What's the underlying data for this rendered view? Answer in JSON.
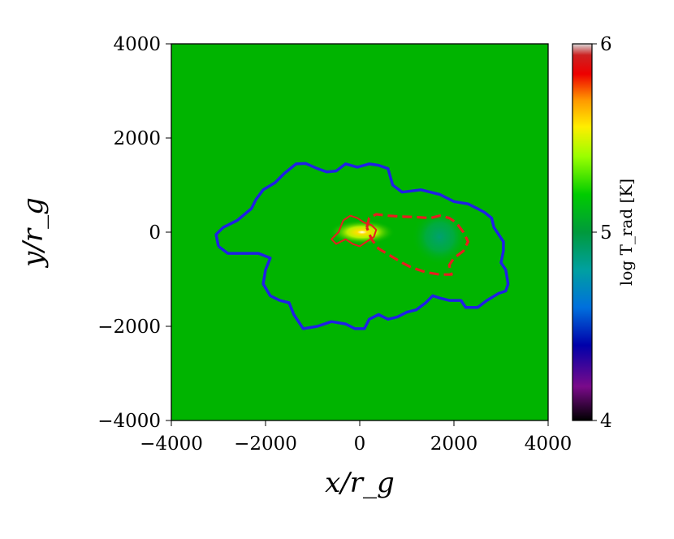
{
  "chart_data": {
    "type": "heatmap",
    "title": "",
    "xlabel": "x/r_g",
    "ylabel": "y/r_g",
    "xlim": [
      -4000,
      4000
    ],
    "ylim": [
      -4000,
      4000
    ],
    "x_ticks": [
      "−4000",
      "−2000",
      "0",
      "2000",
      "4000"
    ],
    "y_ticks": [
      "4000",
      "2000",
      "0",
      "−2000",
      "−4000"
    ],
    "colorbar": {
      "label": "log T_rad [K]",
      "range": [
        4,
        6
      ],
      "ticks": [
        "6",
        "5",
        "4"
      ],
      "colormap": "nipy_spectral"
    },
    "background_value": 5.3,
    "features": [
      {
        "name": "hot-core",
        "x": 50,
        "y": 0,
        "value": 5.7
      },
      {
        "name": "warm-blob",
        "x": 1700,
        "y": -100,
        "value": 4.95
      }
    ],
    "contours": [
      {
        "name": "blue-contour",
        "color": "#1f1fe6",
        "style": "solid",
        "points": [
          [
            -3000,
            -300
          ],
          [
            -3050,
            -50
          ],
          [
            -2900,
            100
          ],
          [
            -2600,
            250
          ],
          [
            -2300,
            500
          ],
          [
            -2200,
            700
          ],
          [
            -2050,
            900
          ],
          [
            -1800,
            1050
          ],
          [
            -1600,
            1250
          ],
          [
            -1350,
            1450
          ],
          [
            -1150,
            1460
          ],
          [
            -900,
            1350
          ],
          [
            -700,
            1280
          ],
          [
            -500,
            1300
          ],
          [
            -300,
            1450
          ],
          [
            -50,
            1380
          ],
          [
            200,
            1450
          ],
          [
            400,
            1420
          ],
          [
            600,
            1350
          ],
          [
            700,
            1000
          ],
          [
            900,
            850
          ],
          [
            1300,
            900
          ],
          [
            1700,
            800
          ],
          [
            2000,
            650
          ],
          [
            2300,
            600
          ],
          [
            2500,
            500
          ],
          [
            2650,
            420
          ],
          [
            2800,
            300
          ],
          [
            2850,
            100
          ],
          [
            3050,
            -200
          ],
          [
            3050,
            -400
          ],
          [
            3000,
            -650
          ],
          [
            3100,
            -800
          ],
          [
            3150,
            -1100
          ],
          [
            3100,
            -1250
          ],
          [
            2950,
            -1300
          ],
          [
            2700,
            -1450
          ],
          [
            2500,
            -1600
          ],
          [
            2250,
            -1600
          ],
          [
            2150,
            -1450
          ],
          [
            1900,
            -1450
          ],
          [
            1700,
            -1400
          ],
          [
            1550,
            -1350
          ],
          [
            1400,
            -1500
          ],
          [
            1200,
            -1650
          ],
          [
            1000,
            -1700
          ],
          [
            800,
            -1800
          ],
          [
            600,
            -1850
          ],
          [
            400,
            -1750
          ],
          [
            200,
            -1850
          ],
          [
            100,
            -2050
          ],
          [
            -100,
            -2050
          ],
          [
            -300,
            -1950
          ],
          [
            -600,
            -1900
          ],
          [
            -900,
            -2000
          ],
          [
            -1200,
            -2050
          ],
          [
            -1400,
            -1750
          ],
          [
            -1500,
            -1500
          ],
          [
            -1700,
            -1450
          ],
          [
            -1900,
            -1350
          ],
          [
            -2050,
            -1100
          ],
          [
            -2000,
            -800
          ],
          [
            -1900,
            -550
          ],
          [
            -2150,
            -450
          ],
          [
            -2500,
            -450
          ],
          [
            -2800,
            -450
          ],
          [
            -3000,
            -300
          ]
        ]
      },
      {
        "name": "red-dashed-contour",
        "color": "#e61e1e",
        "style": "dashed",
        "points": [
          [
            150,
            100
          ],
          [
            200,
            300
          ],
          [
            350,
            380
          ],
          [
            600,
            350
          ],
          [
            900,
            330
          ],
          [
            1200,
            320
          ],
          [
            1500,
            300
          ],
          [
            1700,
            350
          ],
          [
            1900,
            300
          ],
          [
            2050,
            200
          ],
          [
            2200,
            0
          ],
          [
            2300,
            -200
          ],
          [
            2200,
            -400
          ],
          [
            2000,
            -550
          ],
          [
            1900,
            -700
          ],
          [
            1950,
            -900
          ],
          [
            1700,
            -900
          ],
          [
            1400,
            -850
          ],
          [
            1100,
            -750
          ],
          [
            900,
            -650
          ],
          [
            650,
            -500
          ],
          [
            400,
            -350
          ],
          [
            250,
            -150
          ],
          [
            150,
            100
          ]
        ]
      },
      {
        "name": "red-inner-contour",
        "color": "#e61e1e",
        "style": "solid",
        "points": [
          [
            -350,
            250
          ],
          [
            -200,
            350
          ],
          [
            -50,
            300
          ],
          [
            100,
            200
          ],
          [
            250,
            150
          ],
          [
            350,
            50
          ],
          [
            300,
            -100
          ],
          [
            150,
            -200
          ],
          [
            0,
            -300
          ],
          [
            -150,
            -250
          ],
          [
            -300,
            -150
          ],
          [
            -500,
            -250
          ],
          [
            -600,
            -150
          ],
          [
            -450,
            0
          ],
          [
            -350,
            250
          ]
        ]
      }
    ]
  }
}
